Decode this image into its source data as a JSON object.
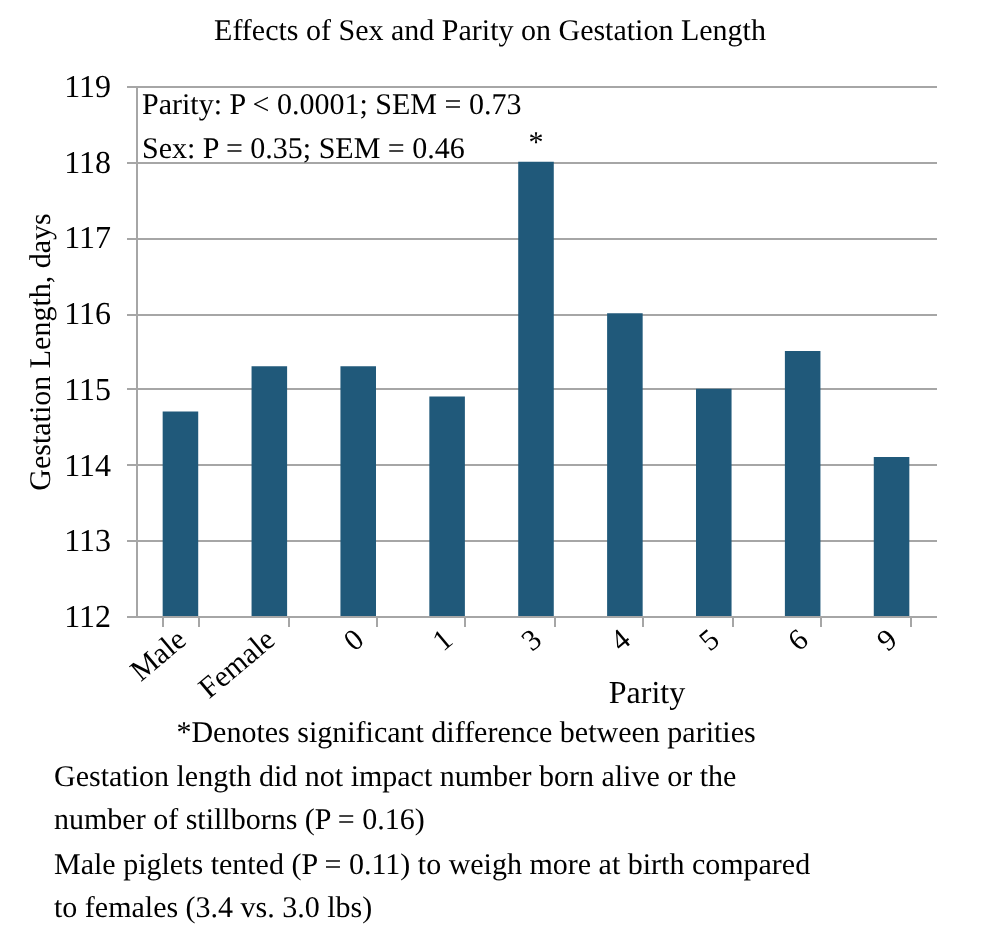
{
  "chart_data": {
    "type": "bar",
    "title": "Effects of Sex and Parity on Gestation Length",
    "xlabel": "Parity",
    "ylabel": "Gestation Length, days",
    "categories": [
      "Male",
      "Female",
      "0",
      "1",
      "3",
      "4",
      "5",
      "6",
      "9"
    ],
    "values": [
      114.7,
      115.3,
      115.3,
      114.9,
      118.0,
      116.0,
      115.0,
      115.5,
      114.1
    ],
    "color": "#20597a",
    "ylim": [
      112,
      119
    ],
    "yticks": [
      112,
      113,
      114,
      115,
      116,
      117,
      118,
      119
    ],
    "grid": "y",
    "annotations": [
      "Parity: P < 0.0001; SEM = 0.73",
      "Sex: P = 0.35; SEM = 0.46",
      {
        "text": "*",
        "x": "3",
        "y": 118.0
      },
      "*Denotes significant difference between parities",
      "Gestation length did not impact number born alive or the\nnumber of stillborns (P = 0.16)",
      "Male piglets tented (P = 0.11) to weigh more at birth compared\nto females (3.4 vs. 3.0 lbs)"
    ]
  }
}
